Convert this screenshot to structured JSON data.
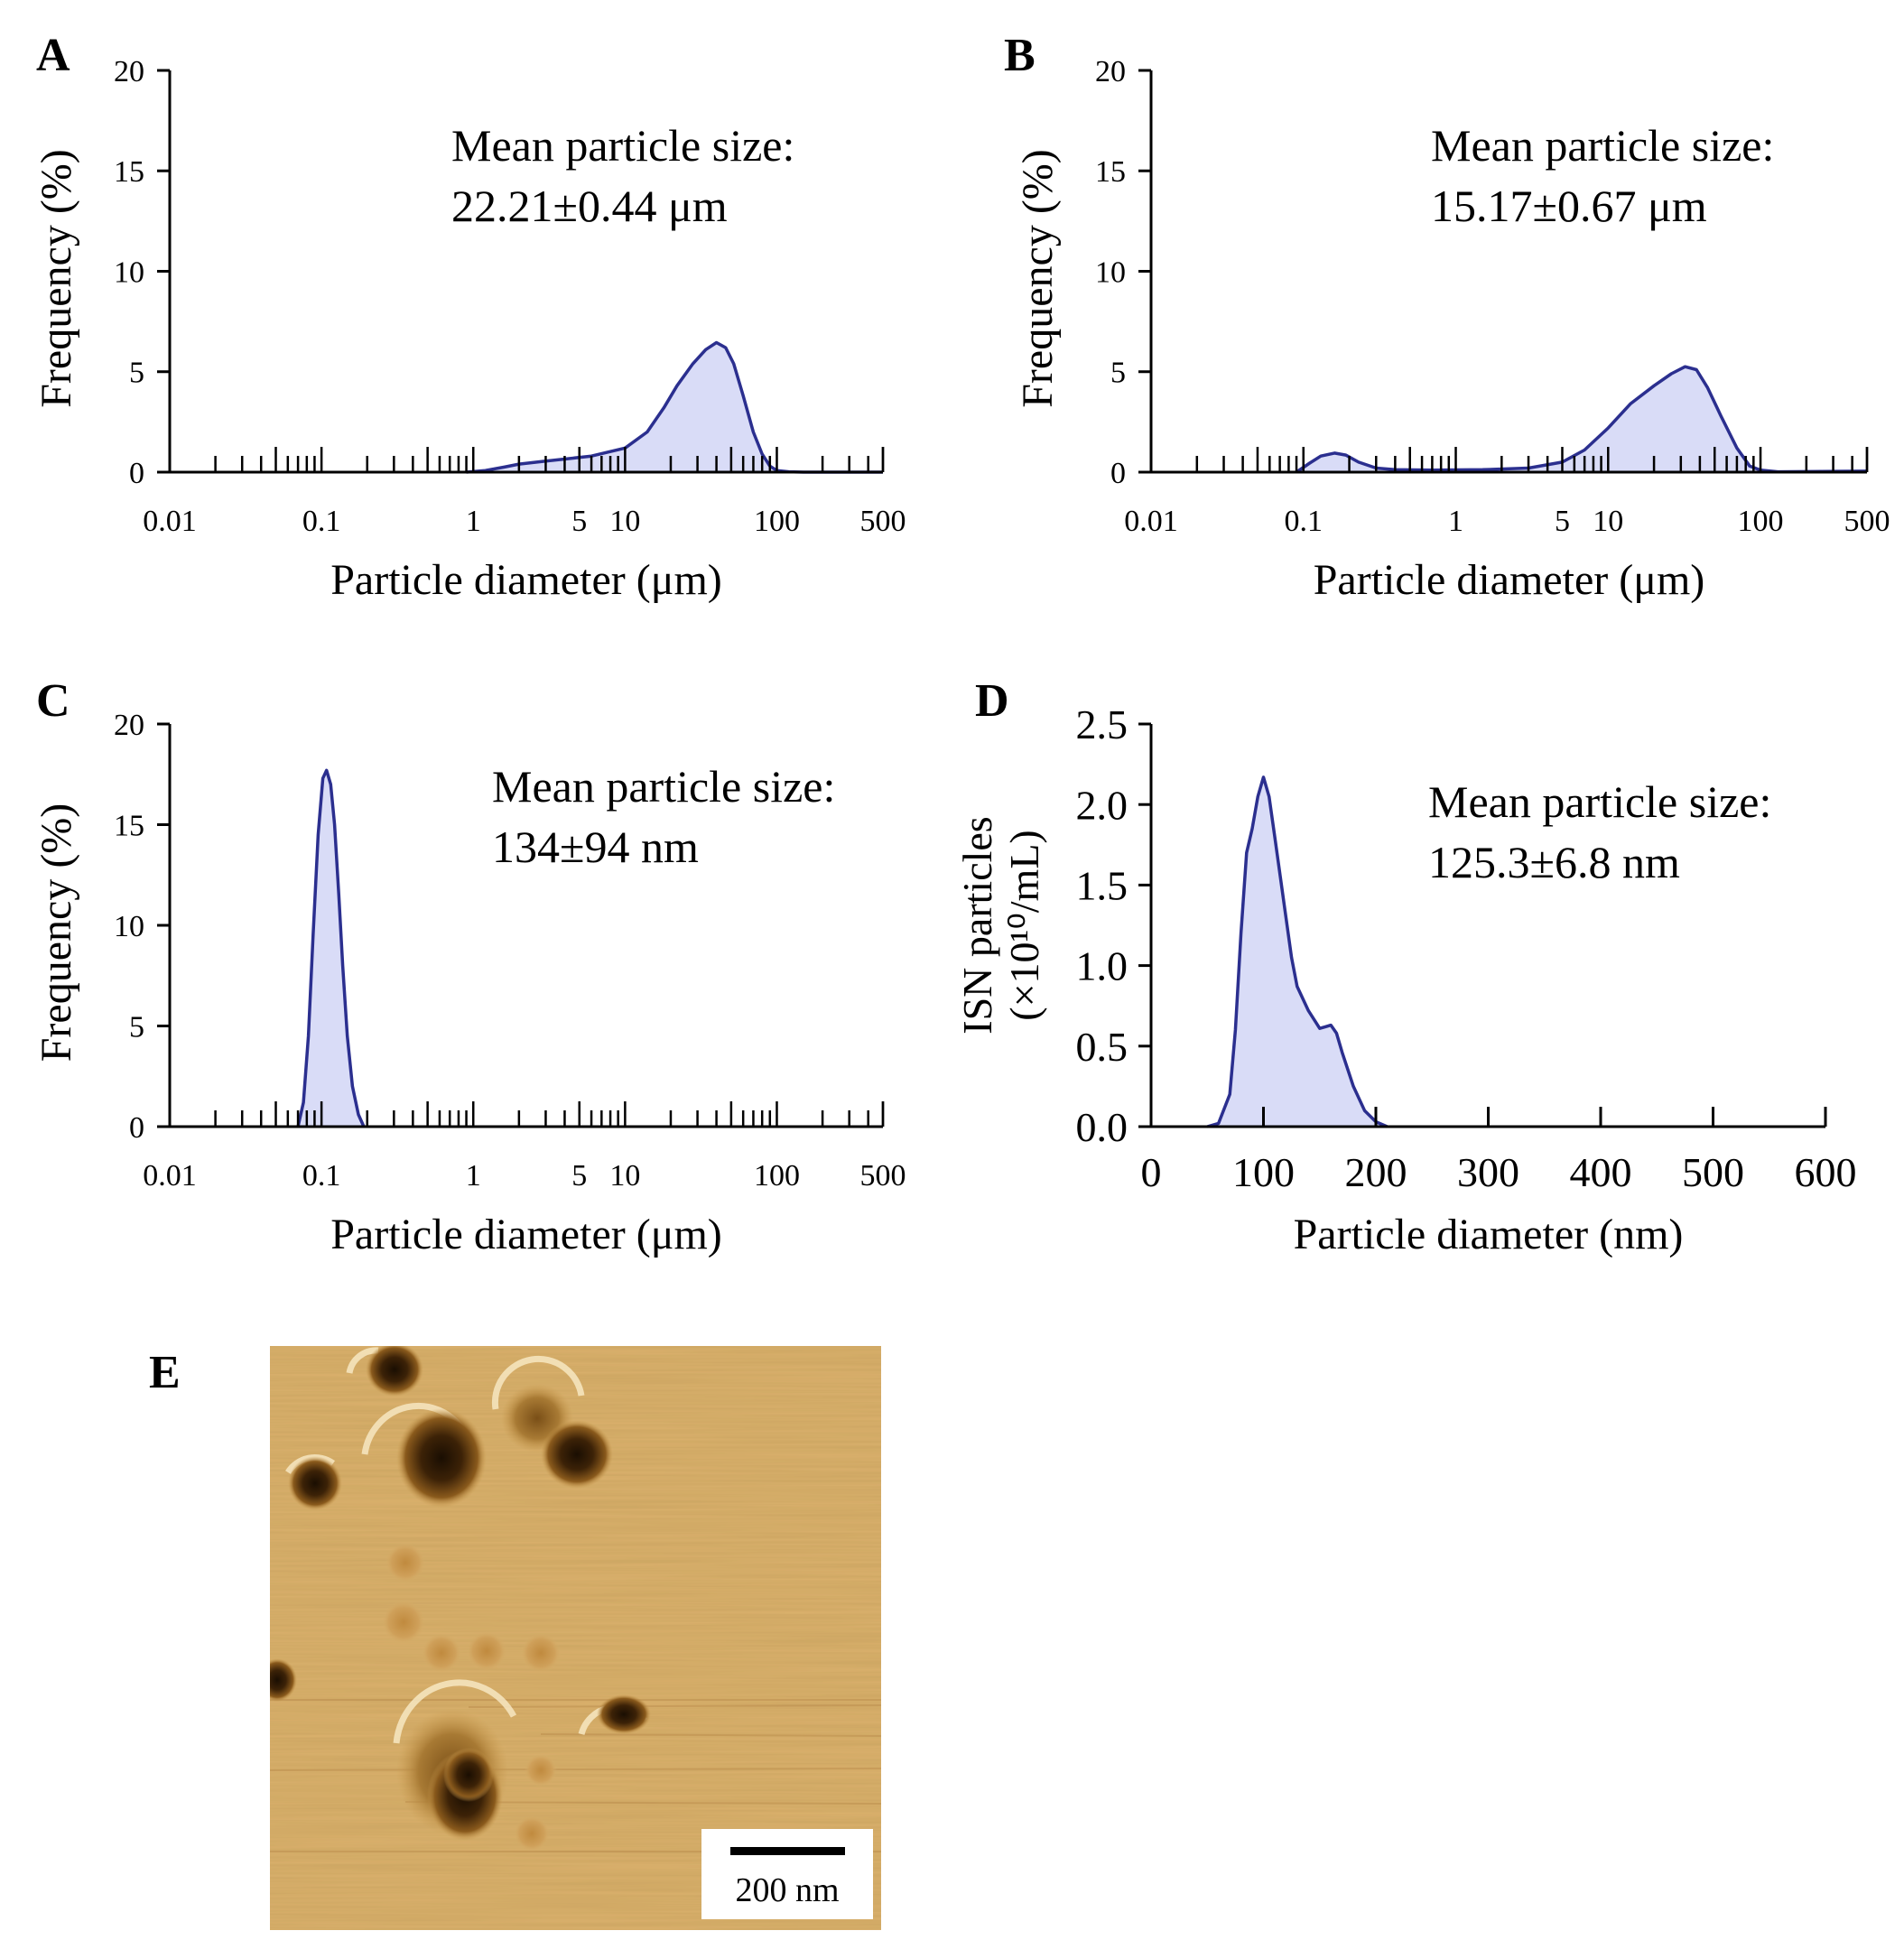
{
  "colors": {
    "line": "#2b2f8f",
    "fill": "#d9dcf7",
    "axis": "#000000"
  },
  "panel_labels": [
    "A",
    "B",
    "C",
    "D",
    "E"
  ],
  "chart_data": [
    {
      "id": "A",
      "type": "area",
      "x_scale": "log",
      "xlim": [
        0.01,
        500
      ],
      "ylim": [
        0,
        20
      ],
      "xticks": [
        "0.01",
        "0.1",
        "1",
        "5",
        "10",
        "100",
        "500"
      ],
      "yticks": [
        "0",
        "5",
        "10",
        "15",
        "20"
      ],
      "xlabel": "Particle diameter (μm)",
      "ylabel": "Frequency (%)",
      "annotation": [
        "Mean particle size:",
        "22.21±0.44 μm"
      ],
      "x": [
        0.9,
        1.2,
        1.6,
        2,
        3,
        4,
        6,
        10,
        14,
        18,
        22,
        28,
        34,
        40,
        46,
        52,
        60,
        70,
        80,
        90,
        100,
        120,
        150,
        250,
        500
      ],
      "y": [
        0,
        0.08,
        0.25,
        0.4,
        0.55,
        0.65,
        0.8,
        1.2,
        2,
        3.2,
        4.3,
        5.4,
        6.1,
        6.45,
        6.2,
        5.4,
        3.8,
        2.0,
        0.9,
        0.3,
        0.08,
        0.02,
        0,
        0,
        0
      ]
    },
    {
      "id": "B",
      "type": "area",
      "x_scale": "log",
      "xlim": [
        0.01,
        500
      ],
      "ylim": [
        0,
        20
      ],
      "xticks": [
        "0.01",
        "0.1",
        "1",
        "5",
        "10",
        "100",
        "500"
      ],
      "yticks": [
        "0",
        "5",
        "10",
        "15",
        "20"
      ],
      "xlabel": "Particle diameter (μm)",
      "ylabel": "Frequency (%)",
      "annotation": [
        "Mean particle size:",
        "15.17±0.67 μm"
      ],
      "x": [
        0.09,
        0.11,
        0.13,
        0.16,
        0.19,
        0.23,
        0.3,
        0.4,
        0.7,
        1.5,
        3,
        5,
        7,
        10,
        14,
        20,
        26,
        32,
        38,
        45,
        55,
        70,
        85,
        100,
        130,
        500
      ],
      "y": [
        0,
        0.45,
        0.8,
        0.95,
        0.85,
        0.5,
        0.2,
        0.12,
        0.1,
        0.12,
        0.2,
        0.5,
        1.1,
        2.2,
        3.4,
        4.3,
        4.9,
        5.25,
        5.1,
        4.2,
        2.8,
        1.2,
        0.3,
        0.1,
        0.02,
        0.05
      ]
    },
    {
      "id": "C",
      "type": "area",
      "x_scale": "log",
      "xlim": [
        0.01,
        500
      ],
      "ylim": [
        0,
        20
      ],
      "xticks": [
        "0.01",
        "0.1",
        "1",
        "5",
        "10",
        "100",
        "500"
      ],
      "yticks": [
        "0",
        "5",
        "10",
        "15",
        "20"
      ],
      "xlabel": "Particle diameter (μm)",
      "ylabel": "Frequency (%)",
      "annotation": [
        "Mean particle size:",
        "134±94 nm"
      ],
      "x": [
        0.07,
        0.076,
        0.082,
        0.088,
        0.095,
        0.102,
        0.108,
        0.115,
        0.122,
        0.13,
        0.138,
        0.148,
        0.16,
        0.175,
        0.19
      ],
      "y": [
        0,
        1.2,
        4.5,
        9.5,
        14.5,
        17.3,
        17.7,
        17.0,
        15.0,
        11.5,
        8.0,
        4.5,
        2.0,
        0.6,
        0
      ]
    },
    {
      "id": "D",
      "type": "area",
      "x_scale": "linear",
      "xlim": [
        0,
        600
      ],
      "ylim": [
        0,
        2.5
      ],
      "xticks": [
        "0",
        "100",
        "200",
        "300",
        "400",
        "500",
        "600"
      ],
      "yticks": [
        "0.0",
        "0.5",
        "1.0",
        "1.5",
        "2.0",
        "2.5"
      ],
      "xlabel": "Particle diameter (nm)",
      "ylabel": [
        "ISN particles",
        "(×10¹⁰/mL)"
      ],
      "annotation": [
        "Mean particle size:",
        "125.3±6.8 nm"
      ],
      "x": [
        50,
        60,
        70,
        75,
        80,
        85,
        90,
        95,
        100,
        105,
        110,
        115,
        120,
        125,
        130,
        140,
        150,
        155,
        160,
        165,
        170,
        180,
        190,
        200,
        210
      ],
      "y": [
        0,
        0.02,
        0.2,
        0.6,
        1.2,
        1.7,
        1.85,
        2.05,
        2.17,
        2.05,
        1.8,
        1.55,
        1.3,
        1.05,
        0.87,
        0.72,
        0.61,
        0.62,
        0.63,
        0.58,
        0.46,
        0.25,
        0.1,
        0.03,
        0
      ]
    }
  ],
  "afm_image": {
    "scale_bar_label": "200 nm"
  }
}
